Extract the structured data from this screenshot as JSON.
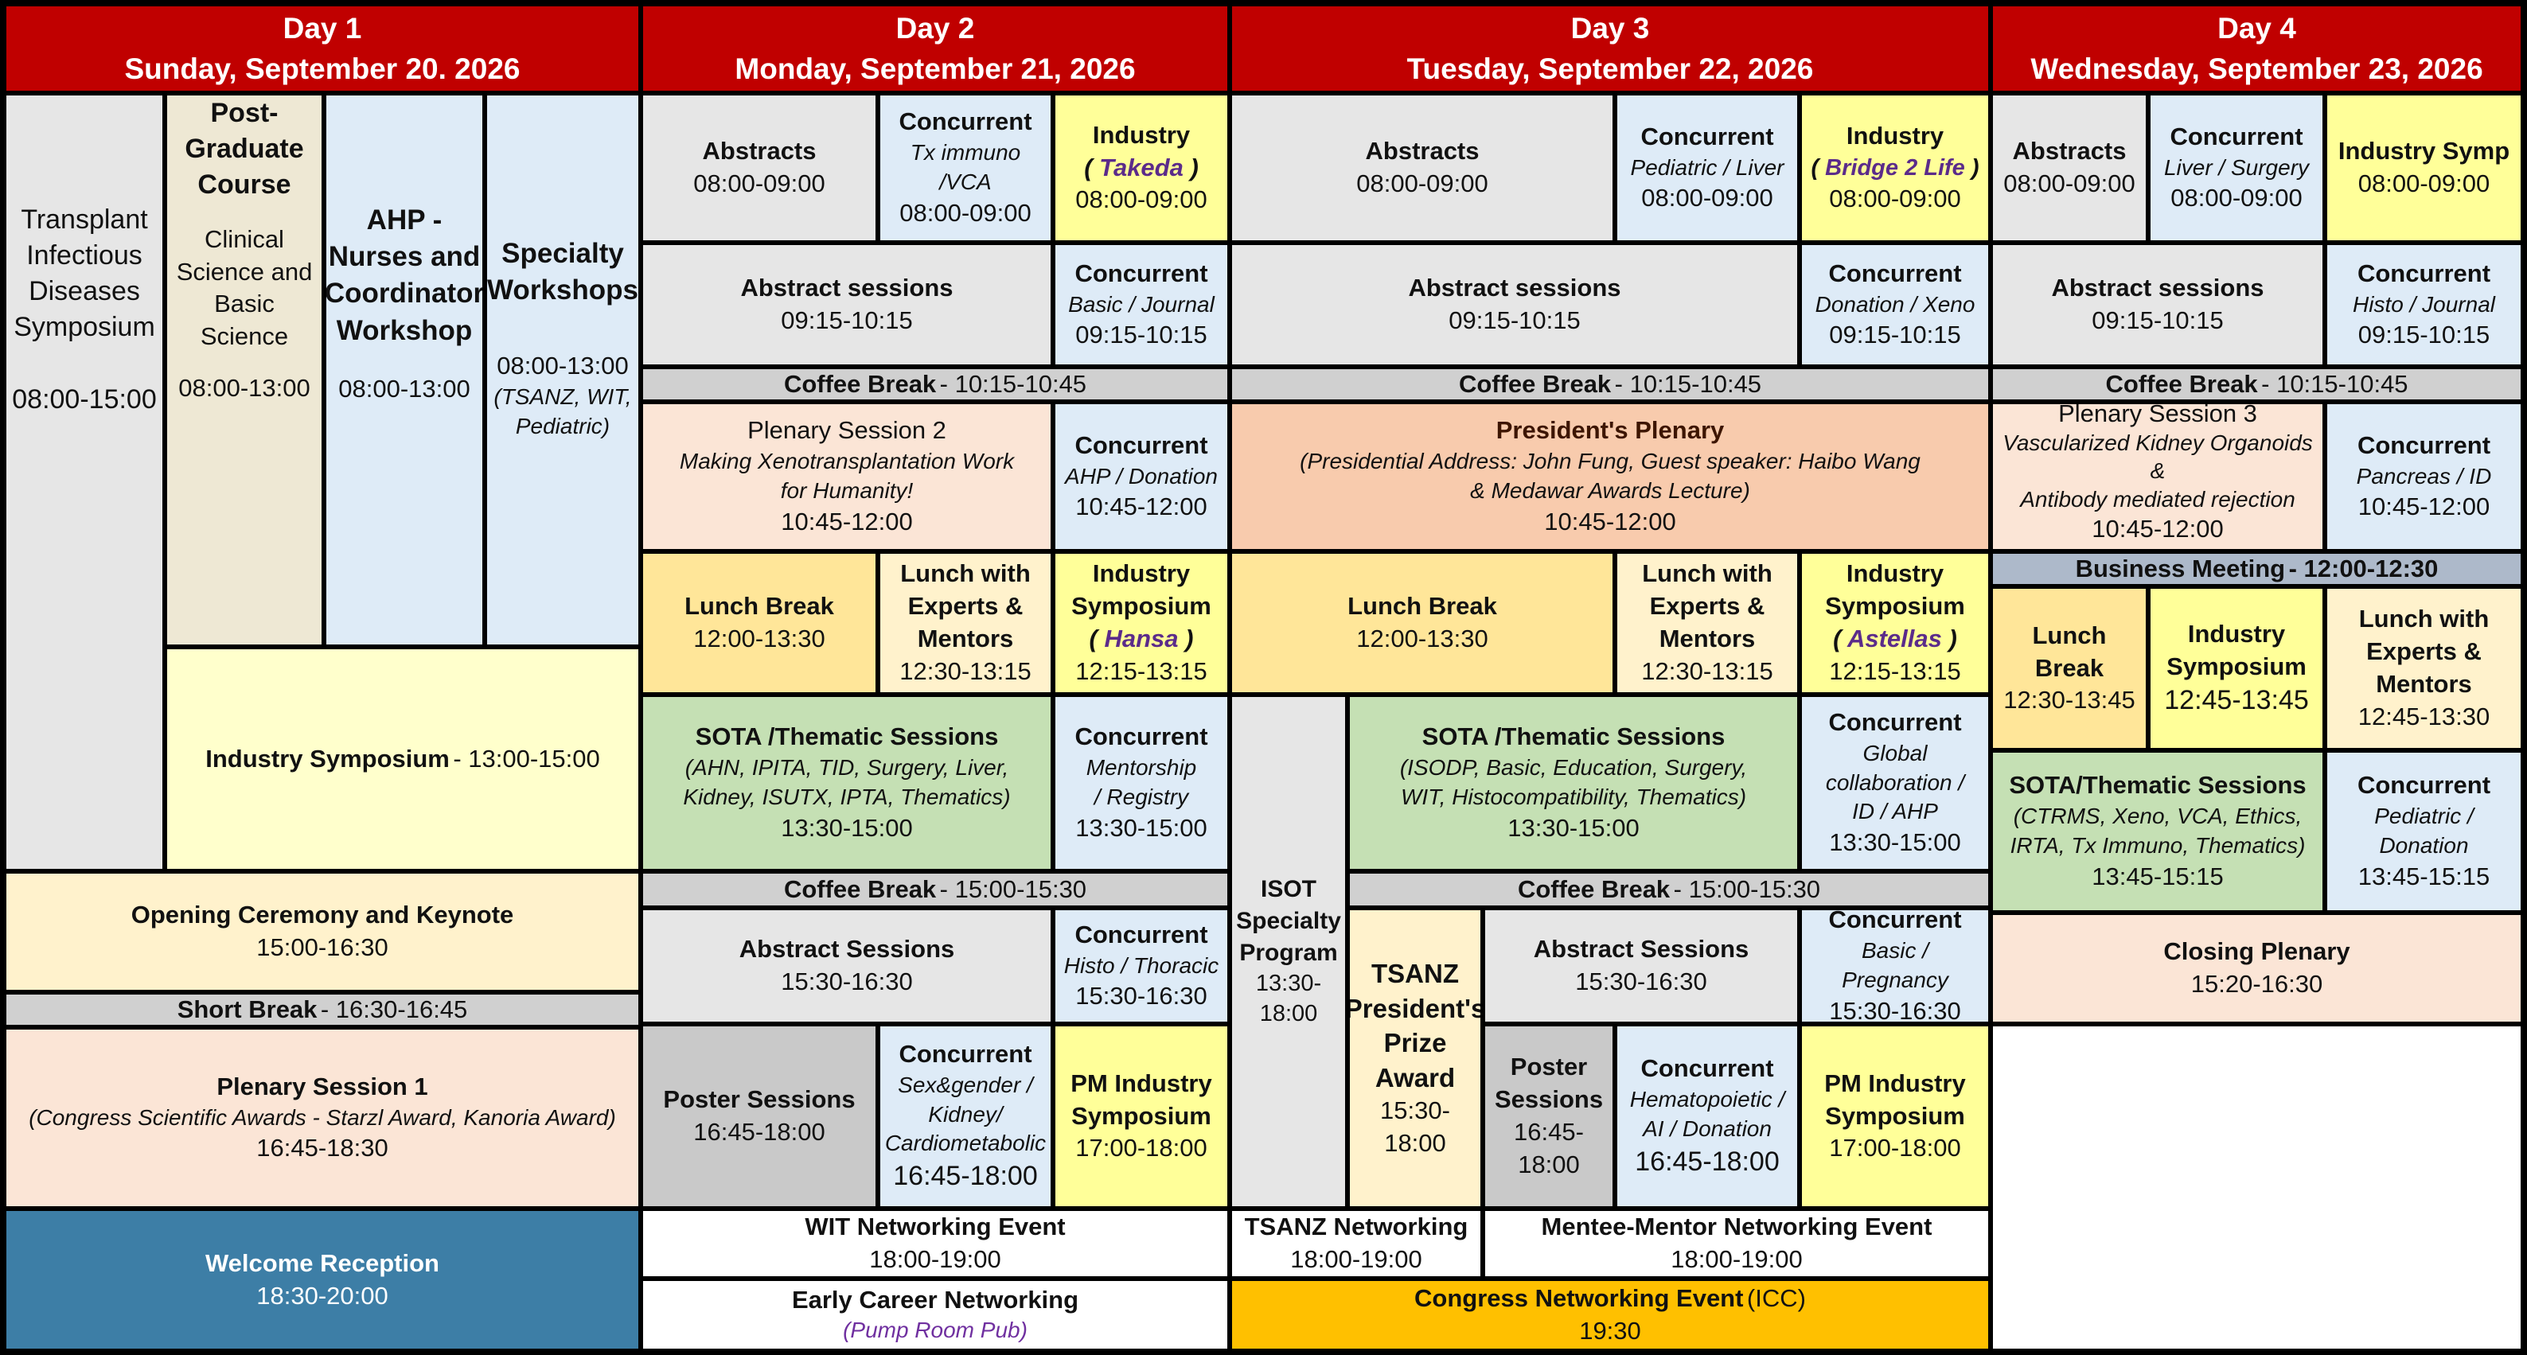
{
  "headers": [
    {
      "day": "Day 1",
      "date": "Sunday, September 20. 2026"
    },
    {
      "day": "Day 2",
      "date": "Monday, September 21, 2026"
    },
    {
      "day": "Day 3",
      "date": "Tuesday, September 22, 2026"
    },
    {
      "day": "Day 4",
      "date": "Wednesday, September 23, 2026"
    }
  ],
  "day1": {
    "tid": {
      "title": "Transplant Infectious Diseases Symposium",
      "time": "08:00-15:00"
    },
    "pgc": {
      "title": "Post-Graduate Course",
      "sub": "Clinical Science and Basic Science",
      "time": "08:00-13:00"
    },
    "ahp": {
      "title": "AHP - Nurses and Coordinator Workshop",
      "time": "08:00-13:00"
    },
    "specialty": {
      "title": "Specialty Workshops",
      "time": "08:00-13:00",
      "note": "(TSANZ, WIT, Pediatric)"
    },
    "industry": {
      "title": "Industry Symposium",
      "time": "- 13:00-15:00"
    },
    "opening": {
      "title": "Opening Ceremony and Keynote",
      "time": "15:00-16:30"
    },
    "shortbreak": {
      "title": "Short Break",
      "time": "- 16:30-16:45"
    },
    "plenary1": {
      "title": "Plenary Session 1",
      "sub": "(Congress Scientific Awards - Starzl Award, Kanoria Award)",
      "time": "16:45-18:30"
    },
    "welcome": {
      "title": "Welcome Reception",
      "time": "18:30-20:00"
    }
  },
  "day2": {
    "abstracts": {
      "title": "Abstracts",
      "time": "08:00-09:00"
    },
    "conc1": {
      "title": "Concurrent",
      "sub": "Tx immuno /VCA",
      "time": "08:00-09:00"
    },
    "industry1": {
      "title": "Industry",
      "sponsor": "Takeda",
      "time": "08:00-09:00"
    },
    "abs_sessions": {
      "title": "Abstract sessions",
      "time": "09:15-10:15"
    },
    "conc2": {
      "title": "Concurrent",
      "sub": "Basic / Journal",
      "time": "09:15-10:15"
    },
    "coffee1": {
      "title": "Coffee Break",
      "time": "- 10:15-10:45"
    },
    "plenary2": {
      "title": "Plenary Session 2",
      "sub": "Making Xenotransplantation Work for Humanity!",
      "time": "10:45-12:00"
    },
    "conc3": {
      "title": "Concurrent",
      "sub": "AHP / Donation",
      "time": "10:45-12:00"
    },
    "lunch": {
      "title": "Lunch Break",
      "time": "12:00-13:30"
    },
    "lunch_experts": {
      "title": "Lunch with Experts & Mentors",
      "time": "12:30-13:15"
    },
    "industry2": {
      "title": "Industry Symposium",
      "sponsor": "Hansa",
      "time": "12:15-13:15"
    },
    "sota": {
      "title": "SOTA /Thematic Sessions",
      "sub": "(AHN, IPITA, TID, Surgery, Liver, Kidney, ISUTX, IPTA, Thematics)",
      "time": "13:30-15:00"
    },
    "conc4": {
      "title": "Concurrent",
      "sub": "Mentorship / Registry",
      "time": "13:30-15:00"
    },
    "coffee2": {
      "title": "Coffee Break",
      "time": "- 15:00-15:30"
    },
    "abs_sessions2": {
      "title": "Abstract Sessions",
      "time": "15:30-16:30"
    },
    "conc5": {
      "title": "Concurrent",
      "sub": "Histo / Thoracic",
      "time": "15:30-16:30"
    },
    "poster": {
      "title": "Poster Sessions",
      "time": "16:45-18:00"
    },
    "conc6": {
      "title": "Concurrent",
      "sub": "Sex&gender / Kidney/ Cardiometabolic",
      "time": "16:45-18:00"
    },
    "pm_industry": {
      "title": "PM Industry Symposium",
      "time": "17:00-18:00"
    },
    "wit": {
      "title": "WIT Networking Event",
      "time": "18:00-19:00"
    },
    "early": {
      "title": "Early Career Networking",
      "sub": "(Pump Room Pub)"
    }
  },
  "day3": {
    "abstracts": {
      "title": "Abstracts",
      "time": "08:00-09:00"
    },
    "conc1": {
      "title": "Concurrent",
      "sub": "Pediatric / Liver",
      "time": "08:00-09:00"
    },
    "industry1": {
      "title": "Industry",
      "sponsor": "Bridge 2 Life",
      "time": "08:00-09:00"
    },
    "abs_sessions": {
      "title": "Abstract sessions",
      "time": "09:15-10:15"
    },
    "conc2": {
      "title": "Concurrent",
      "sub": "Donation / Xeno",
      "time": "09:15-10:15"
    },
    "coffee1": {
      "title": "Coffee Break",
      "time": "- 10:15-10:45"
    },
    "presplenary": {
      "title": "President's Plenary",
      "sub": "(Presidential Address: John Fung, Guest speaker: Haibo Wang & Medawar Awards Lecture)",
      "time": "10:45-12:00"
    },
    "lunch": {
      "title": "Lunch Break",
      "time": "12:00-13:30"
    },
    "lunch_experts": {
      "title": "Lunch with Experts & Mentors",
      "time": "12:30-13:15"
    },
    "industry2": {
      "title": "Industry Symposium",
      "sponsor": "Astellas",
      "time": "12:15-13:15"
    },
    "isot": {
      "title": "ISOT Specialty Program",
      "time": "13:30-18:00"
    },
    "sota": {
      "title": "SOTA /Thematic Sessions",
      "sub": "(ISODP, Basic, Education, Surgery, WIT, Histocompatibility, Thematics)",
      "time": "13:30-15:00"
    },
    "conc3": {
      "title": "Concurrent",
      "sub": "Global collaboration / ID / AHP",
      "time": "13:30-15:00"
    },
    "coffee2": {
      "title": "Coffee Break",
      "time": "- 15:00-15:30"
    },
    "tsanz": {
      "title": "TSANZ President's Prize Award",
      "time": "15:30-18:00"
    },
    "abs_sessions2": {
      "title": "Abstract Sessions",
      "time": "15:30-16:30"
    },
    "conc4": {
      "title": "Concurrent",
      "sub": "Basic / Pregnancy",
      "time": "15:30-16:30"
    },
    "poster": {
      "title": "Poster Sessions",
      "time": "16:45-18:00"
    },
    "conc5": {
      "title": "Concurrent",
      "sub": "Hematopoietic / AI / Donation",
      "time": "16:45-18:00"
    },
    "pm_industry": {
      "title": "PM Industry Symposium",
      "time": "17:00-18:00"
    },
    "tsanz_net": {
      "title": "TSANZ Networking",
      "time": "18:00-19:00"
    },
    "mentee": {
      "title": "Mentee-Mentor Networking Event",
      "time": "18:00-19:00"
    },
    "congress": {
      "title": "Congress Networking Event",
      "sub": "(ICC)",
      "time": "19:30"
    }
  },
  "day4": {
    "abstracts": {
      "title": "Abstracts",
      "time": "08:00-09:00"
    },
    "conc1": {
      "title": "Concurrent",
      "sub": "Liver / Surgery",
      "time": "08:00-09:00"
    },
    "industry1": {
      "title": "Industry Symp",
      "time": "08:00-09:00"
    },
    "abs_sessions": {
      "title": "Abstract sessions",
      "time": "09:15-10:15"
    },
    "conc2": {
      "title": "Concurrent",
      "sub": "Histo / Journal",
      "time": "09:15-10:15"
    },
    "coffee1": {
      "title": "Coffee Break",
      "time": "- 10:15-10:45"
    },
    "plenary3": {
      "title": "Plenary Session 3",
      "sub1": "Vascularized Kidney Organoids",
      "amp": "&",
      "sub2": "Antibody mediated rejection",
      "time": "10:45-12:00"
    },
    "conc3": {
      "title": "Concurrent",
      "sub": "Pancreas / ID",
      "time": "10:45-12:00"
    },
    "business": {
      "title": "Business Meeting",
      "time": "- 12:00-12:30"
    },
    "lunch": {
      "title": "Lunch Break",
      "time": "12:30-13:45"
    },
    "industry2": {
      "title": "Industry Symposium",
      "time": "12:45-13:45"
    },
    "lunch_experts": {
      "title": "Lunch with Experts & Mentors",
      "time": "12:45-13:30"
    },
    "sota": {
      "title": "SOTA/Thematic Sessions",
      "sub": "(CTRMS, Xeno, VCA, Ethics, IRTA, Tx Immuno, Thematics)",
      "time": "13:45-15:15"
    },
    "conc4": {
      "title": "Concurrent",
      "sub": "Pediatric / Donation",
      "time": "13:45-15:15"
    },
    "closing": {
      "title": "Closing Plenary",
      "time": "15:20-16:30"
    }
  }
}
